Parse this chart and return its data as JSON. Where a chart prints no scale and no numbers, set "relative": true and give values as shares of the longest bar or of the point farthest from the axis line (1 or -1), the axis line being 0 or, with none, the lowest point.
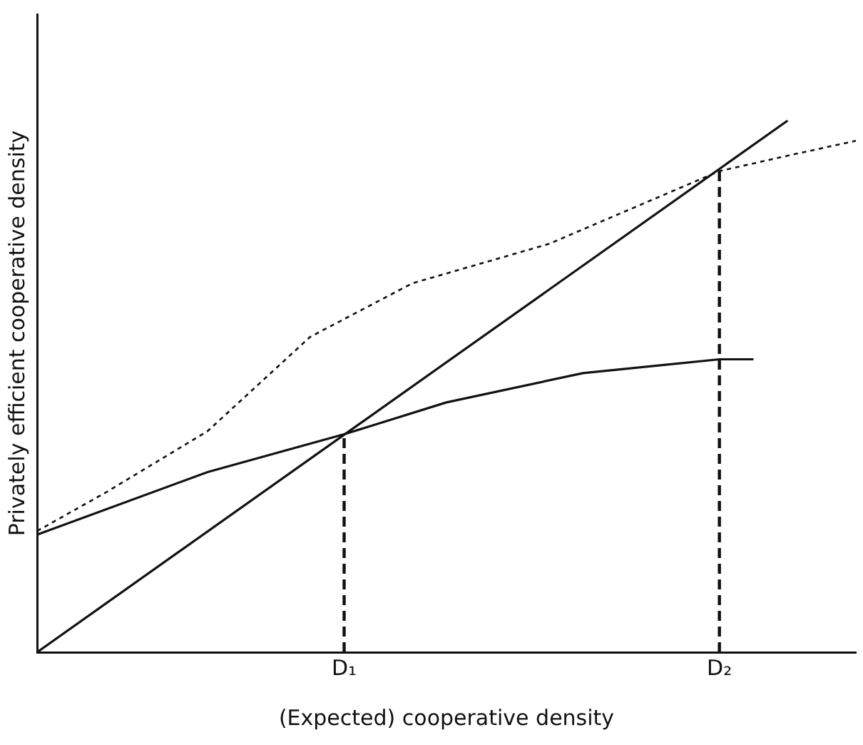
{
  "chart_data": {
    "type": "line",
    "relative": true,
    "xlabel": "(Expected) cooperative density",
    "ylabel": "Privately efficient cooperative density",
    "categories": [
      null,
      null,
      null,
      null,
      null,
      null,
      null,
      null,
      null,
      "D₁",
      null,
      null,
      null,
      null,
      null,
      null,
      null,
      null,
      null,
      null,
      "D₂",
      null,
      null,
      null,
      null
    ],
    "grid": false,
    "legend": false,
    "marker": "none",
    "series": [
      {
        "color": "#111111",
        "line_style": "solid",
        "values": [
          0,
          null,
          null,
          null,
          null,
          null,
          null,
          null,
          null,
          null,
          null,
          null,
          null,
          null,
          null,
          null,
          null,
          null,
          null,
          null,
          null,
          null,
          1,
          null,
          null
        ]
      },
      {
        "color": "#111111",
        "line_style": "solid",
        "values": [
          0.221,
          null,
          null,
          null,
          null,
          0.339,
          null,
          null,
          null,
          0.41,
          null,
          null,
          0.47,
          null,
          null,
          null,
          0.525,
          null,
          null,
          null,
          0.551,
          0.551,
          null,
          null,
          null
        ]
      },
      {
        "color": "#111111",
        "line_style": "dotted",
        "values": [
          0.228,
          null,
          0.3,
          null,
          null,
          0.416,
          null,
          null,
          0.593,
          null,
          null,
          0.694,
          null,
          null,
          null,
          0.768,
          null,
          null,
          null,
          null,
          0.905,
          null,
          0.934,
          null,
          0.962
        ]
      }
    ],
    "ref_lines": [
      {
        "axis": "x",
        "value": "D₁",
        "line_style": "dashed",
        "color": "#111111"
      },
      {
        "axis": "x",
        "value": "D₂",
        "line_style": "dashed",
        "color": "#111111"
      }
    ]
  }
}
